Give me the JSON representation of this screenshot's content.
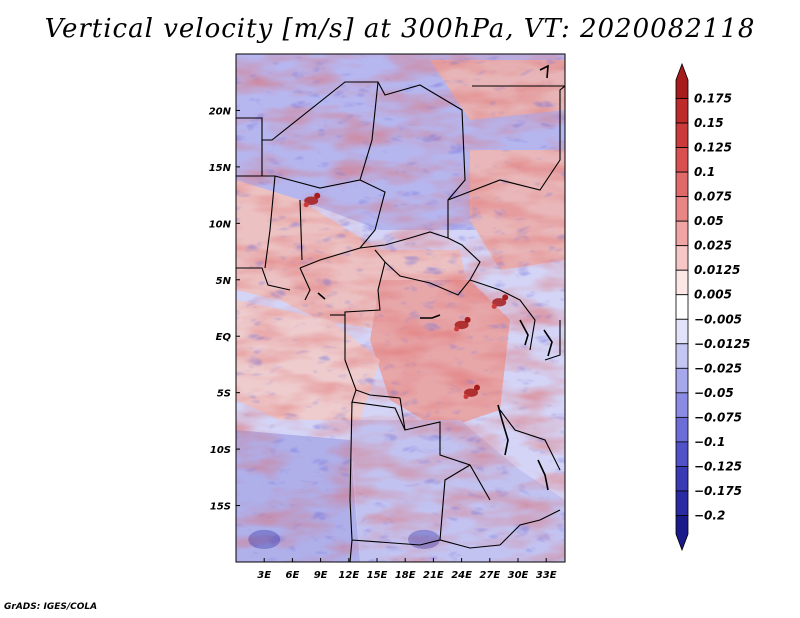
{
  "title": "Vertical velocity [m/s] at 300hPa, VT: 2020082118",
  "footer": "GrADS: IGES/COLA",
  "chart_data": {
    "type": "heatmap",
    "title": "Vertical velocity [m/s] at 300hPa, VT: 2020082118",
    "variable": "Vertical velocity",
    "units": "m/s",
    "level": "300hPa",
    "valid_time": "2020082118",
    "x_range_deg": [
      0,
      35
    ],
    "y_range_deg": [
      -20,
      25
    ],
    "x_ticks": [
      {
        "value": 3,
        "label": "3E"
      },
      {
        "value": 6,
        "label": "6E"
      },
      {
        "value": 9,
        "label": "9E"
      },
      {
        "value": 12,
        "label": "12E"
      },
      {
        "value": 15,
        "label": "15E"
      },
      {
        "value": 18,
        "label": "18E"
      },
      {
        "value": 21,
        "label": "21E"
      },
      {
        "value": 24,
        "label": "24E"
      },
      {
        "value": 27,
        "label": "27E"
      },
      {
        "value": 30,
        "label": "30E"
      },
      {
        "value": 33,
        "label": "33E"
      }
    ],
    "y_ticks": [
      {
        "value": 20,
        "label": "20N"
      },
      {
        "value": 15,
        "label": "15N"
      },
      {
        "value": 10,
        "label": "10N"
      },
      {
        "value": 5,
        "label": "5N"
      },
      {
        "value": 0,
        "label": "EQ"
      },
      {
        "value": -5,
        "label": "5S"
      },
      {
        "value": -10,
        "label": "10S"
      },
      {
        "value": -15,
        "label": "15S"
      }
    ],
    "colorbar": {
      "levels": [
        "0.175",
        "0.15",
        "0.125",
        "0.1",
        "0.075",
        "0.05",
        "0.025",
        "0.0125",
        "0.005",
        "−0.005",
        "−0.0125",
        "−0.025",
        "−0.05",
        "−0.075",
        "−0.1",
        "−0.125",
        "−0.175",
        "−0.2"
      ],
      "colors": [
        "#a61c1c",
        "#bd2b2b",
        "#cc3b3b",
        "#d95050",
        "#e06969",
        "#e88585",
        "#f0a4a4",
        "#f7c6c6",
        "#fde6e6",
        "#ffffff",
        "#e2e2fb",
        "#c6c6f3",
        "#a7a7ec",
        "#8b8be4",
        "#6d6dd8",
        "#5151c8",
        "#3a3ab5",
        "#2a2aa2",
        "#1a1a8a"
      ]
    },
    "notable_features": [
      {
        "lon": 24,
        "lat": 1,
        "sign": "positive",
        "label": "strong ascent over central Congo basin"
      },
      {
        "lon": 25,
        "lat": -5,
        "sign": "positive",
        "label": "ascent cluster south of equator"
      },
      {
        "lon": 28,
        "lat": 3,
        "sign": "positive",
        "label": "ascent near Great Lakes"
      },
      {
        "lon": 8,
        "lat": 12,
        "sign": "positive",
        "label": "ascent over Nigeria/Niger"
      },
      {
        "lon": 3,
        "lat": -18,
        "sign": "negative",
        "label": "descent over SE Atlantic"
      },
      {
        "lon": 20,
        "lat": -18,
        "sign": "negative",
        "label": "descent over southern Angola/Zambia"
      }
    ]
  }
}
